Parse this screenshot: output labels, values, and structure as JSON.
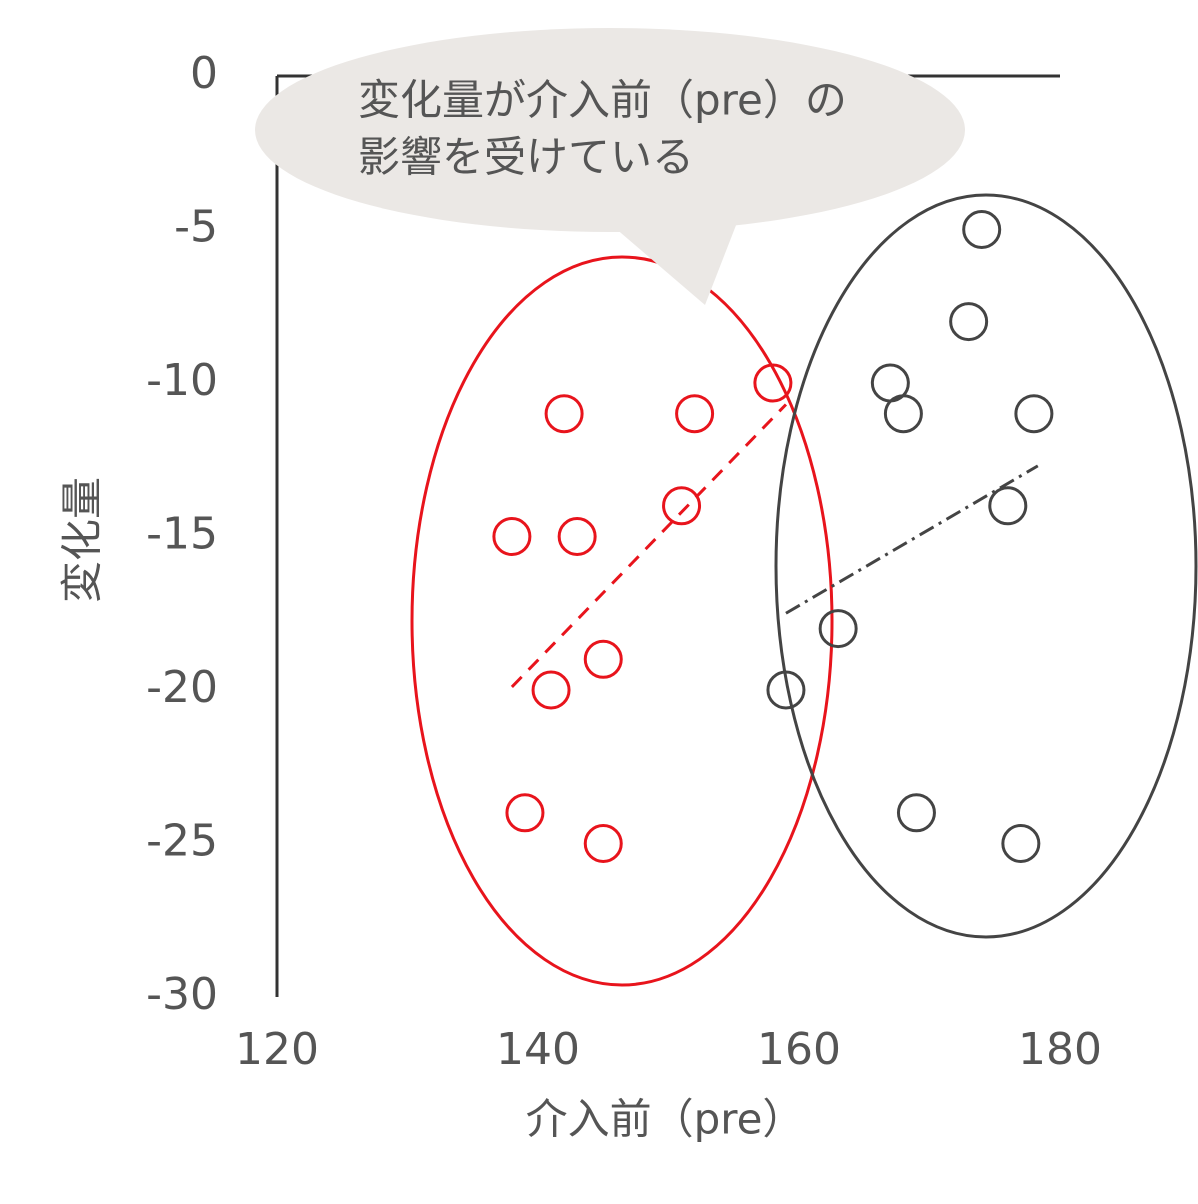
{
  "chart_data": {
    "type": "scatter",
    "xlabel": "介入前（pre）",
    "ylabel": "変化量",
    "annotation": [
      "変化量が介入前（pre）の",
      "影響を受けている"
    ],
    "xlim": [
      120,
      180
    ],
    "xticks": [
      120,
      140,
      160,
      180
    ],
    "ylim": [
      -30,
      0
    ],
    "yticks": [
      -30,
      -25,
      -20,
      -15,
      -10,
      -5,
      0
    ],
    "grid": false,
    "series": [
      {
        "color": "#e8141c",
        "dash": "14,10",
        "x": [
          142,
          152,
          158,
          151,
          138,
          143,
          145,
          141,
          139,
          145
        ],
        "values": [
          -11,
          -11,
          -10,
          -14,
          -15,
          -15,
          -19,
          -20,
          -24,
          -25
        ],
        "trend_x": [
          138,
          159
        ],
        "trend_values": [
          -19.9,
          -10.7
        ]
      },
      {
        "color": "#444444",
        "dash": "16,6,3,6",
        "x": [
          174,
          173,
          167,
          168,
          178,
          176,
          163,
          159,
          169,
          177
        ],
        "values": [
          -5,
          -8,
          -10,
          -11,
          -11,
          -14,
          -18,
          -20,
          -24,
          -25
        ],
        "trend_x": [
          159,
          178.3
        ],
        "trend_values": [
          -17.5,
          -12.7
        ]
      }
    ]
  }
}
